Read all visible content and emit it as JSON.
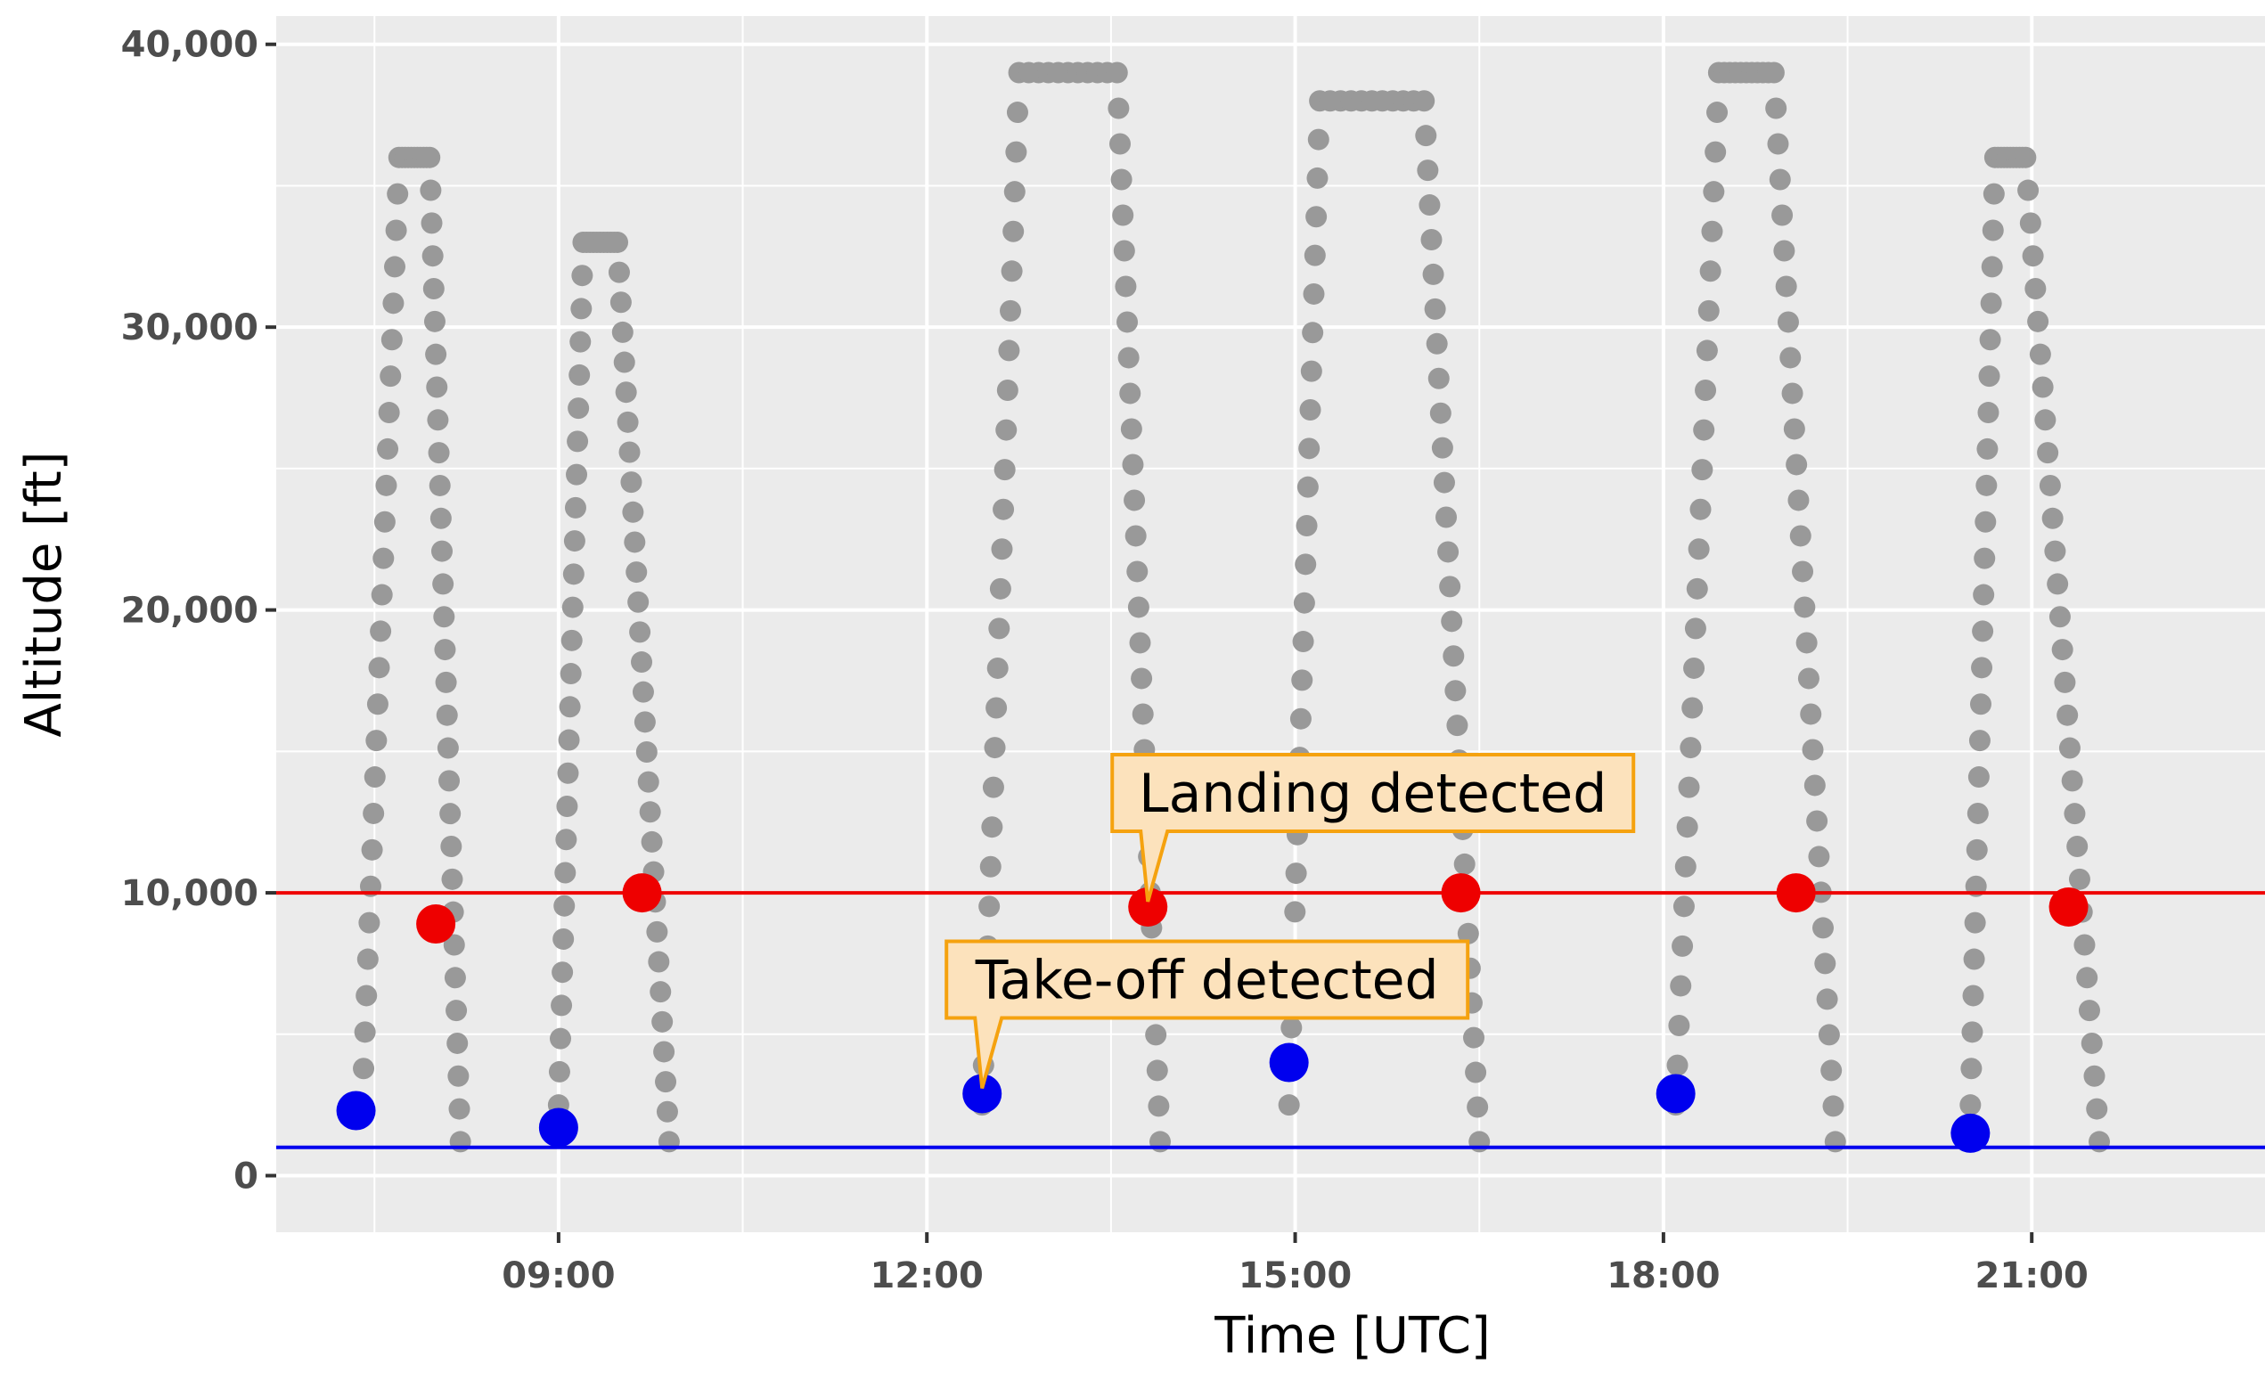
{
  "chart_data": {
    "type": "scatter",
    "xlabel": "Time [UTC]",
    "ylabel": "Altitude [ft]",
    "x_unit": "hours UTC",
    "xlim": [
      6.7,
      22.9
    ],
    "ylim": [
      -2000,
      41000
    ],
    "x_ticks": [
      {
        "value": 9,
        "label": "09:00"
      },
      {
        "value": 12,
        "label": "12:00"
      },
      {
        "value": 15,
        "label": "15:00"
      },
      {
        "value": 18,
        "label": "18:00"
      },
      {
        "value": 21,
        "label": "21:00"
      }
    ],
    "y_ticks": [
      {
        "value": 0,
        "label": "0"
      },
      {
        "value": 10000,
        "label": "10,000"
      },
      {
        "value": 20000,
        "label": "20,000"
      },
      {
        "value": 30000,
        "label": "30,000"
      },
      {
        "value": 40000,
        "label": "40,000"
      }
    ],
    "grid": true,
    "background": "#ebebeb",
    "colors": {
      "altitude": "#999999",
      "takeoff": "#0000ee",
      "landing": "#ee0000",
      "callout_fill": "#fce2bc",
      "callout_border": "#f5a20f"
    },
    "flights": [
      {
        "start": 7.4,
        "climb_end": 7.7,
        "cruise_alt": 36000,
        "descent_start": 7.95,
        "end": 8.2
      },
      {
        "start": 9.0,
        "climb_end": 9.2,
        "cruise_alt": 33000,
        "descent_start": 9.48,
        "end": 9.9
      },
      {
        "start": 12.45,
        "climb_end": 12.75,
        "cruise_alt": 39000,
        "descent_start": 13.55,
        "end": 13.9
      },
      {
        "start": 14.95,
        "climb_end": 15.2,
        "cruise_alt": 38000,
        "descent_start": 16.05,
        "end": 16.5
      },
      {
        "start": 18.1,
        "climb_end": 18.45,
        "cruise_alt": 39000,
        "descent_start": 18.9,
        "end": 19.4
      },
      {
        "start": 20.5,
        "climb_end": 20.7,
        "cruise_alt": 36000,
        "descent_start": 20.95,
        "end": 21.55
      }
    ],
    "thresholds": [
      {
        "name": "landing",
        "y": 10000,
        "color": "#ee0000"
      },
      {
        "name": "takeoff",
        "y": 1000,
        "color": "#0000ee"
      }
    ],
    "takeoff_points": [
      {
        "x": 7.35,
        "y": 2300
      },
      {
        "x": 9.0,
        "y": 1700
      },
      {
        "x": 12.45,
        "y": 2900
      },
      {
        "x": 14.95,
        "y": 4000
      },
      {
        "x": 18.1,
        "y": 2900
      },
      {
        "x": 20.5,
        "y": 1500
      }
    ],
    "landing_points": [
      {
        "x": 8.0,
        "y": 8900
      },
      {
        "x": 9.68,
        "y": 10000
      },
      {
        "x": 13.8,
        "y": 9500
      },
      {
        "x": 16.35,
        "y": 10000
      },
      {
        "x": 19.08,
        "y": 10000
      },
      {
        "x": 21.3,
        "y": 9500
      }
    ],
    "annotations": [
      {
        "text": "Landing detected",
        "x": 13.8,
        "y": 9500
      },
      {
        "text": "Take-off detected",
        "x": 12.45,
        "y": 2900
      }
    ]
  }
}
